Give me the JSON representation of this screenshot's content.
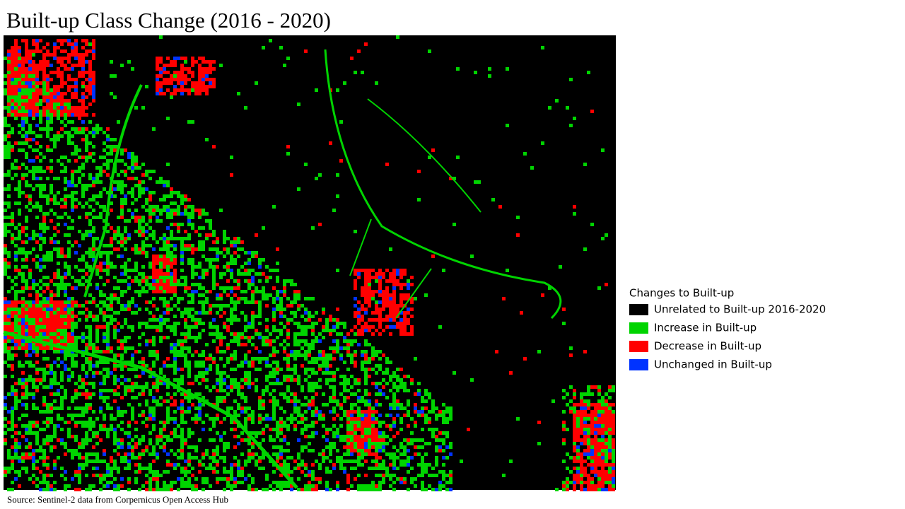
{
  "header": {
    "title": "Built-up Class Change (2016 - 2020)"
  },
  "legend": {
    "title": "Changes to Built-up",
    "items": [
      {
        "label": "Unrelated to Built-up 2016-2020",
        "color": "#000000"
      },
      {
        "label": "Increase in Built-up",
        "color": "#00d400"
      },
      {
        "label": "Decrease in Built-up",
        "color": "#ff0000"
      },
      {
        "label": "Unchanged in Built-up",
        "color": "#0033ff"
      }
    ]
  },
  "footer": {
    "source": "Source:  Sentinel-2  data from  Corpernicus  Open Access Hub"
  }
}
